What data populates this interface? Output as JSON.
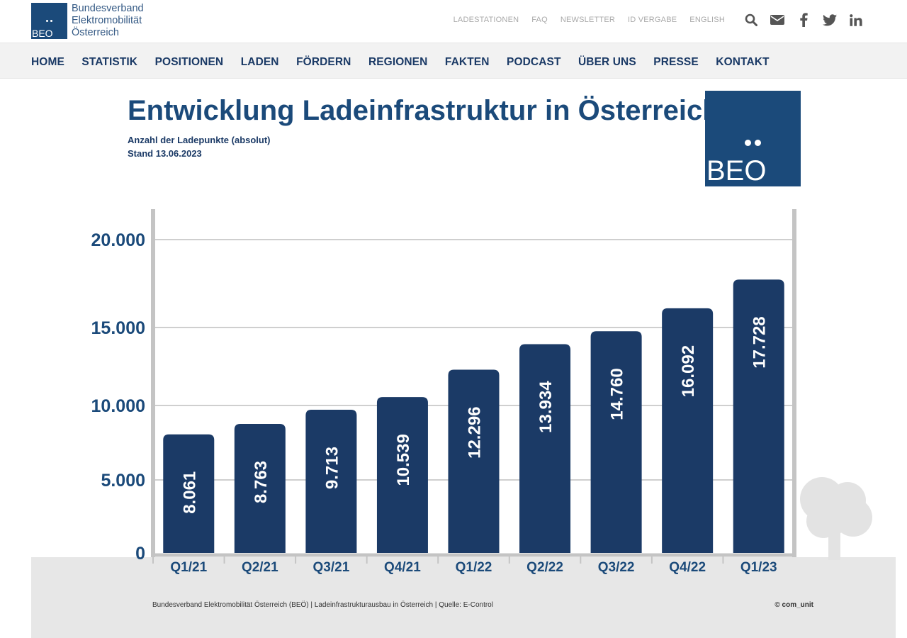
{
  "header": {
    "logo": {
      "abbr": "BEO",
      "name_lines": [
        "Bundesverband",
        "Elektromobilität",
        "Österreich"
      ]
    },
    "top_links": [
      "LADESTATIONEN",
      "FAQ",
      "NEWSLETTER",
      "ID VERGABE",
      "ENGLISH"
    ],
    "icons": [
      "search-icon",
      "mail-icon",
      "facebook-icon",
      "twitter-icon",
      "linkedin-icon"
    ]
  },
  "nav": {
    "items": [
      "HOME",
      "STATISTIK",
      "POSITIONEN",
      "LADEN",
      "FÖRDERN",
      "REGIONEN",
      "FAKTEN",
      "PODCAST",
      "ÜBER UNS",
      "PRESSE",
      "KONTAKT"
    ]
  },
  "badge": {
    "abbr": "BEO"
  },
  "footer": {
    "source": "Bundesverband Elektromobilität Österreich (BEÖ) | Ladeinfrastrukturausbau in Österreich | Quelle: E-Control",
    "copyright": "© com_unit"
  },
  "colors": {
    "brand": "#1b4a7a",
    "bar": "#1b3a66",
    "frame": "#c4c4c4",
    "gridline": "#cfcfcf",
    "ground": "#e7e7e7"
  },
  "chart_data": {
    "type": "bar",
    "title": "Entwicklung Ladeinfrastruktur in Österreich",
    "subtitle": [
      "Anzahl der Ladepunkte (absolut)",
      "Stand 13.06.2023"
    ],
    "categories": [
      "Q1/21",
      "Q2/21",
      "Q3/21",
      "Q4/21",
      "Q1/22",
      "Q2/22",
      "Q3/22",
      "Q4/22",
      "Q1/23"
    ],
    "values": [
      8061,
      8763,
      9713,
      10539,
      12296,
      13934,
      14760,
      16092,
      17728
    ],
    "value_labels": [
      "8.061",
      "8.763",
      "9.713",
      "10.539",
      "12.296",
      "13.934",
      "14.760",
      "16.092",
      "17.728"
    ],
    "y_ticks": [
      0,
      5000,
      10000,
      15000,
      20000
    ],
    "y_tick_labels": [
      "0",
      "5.000",
      "10.000",
      "15.000",
      "20.000"
    ],
    "ylim": [
      0,
      22000
    ],
    "grid": true,
    "xlabel": "",
    "ylabel": ""
  }
}
